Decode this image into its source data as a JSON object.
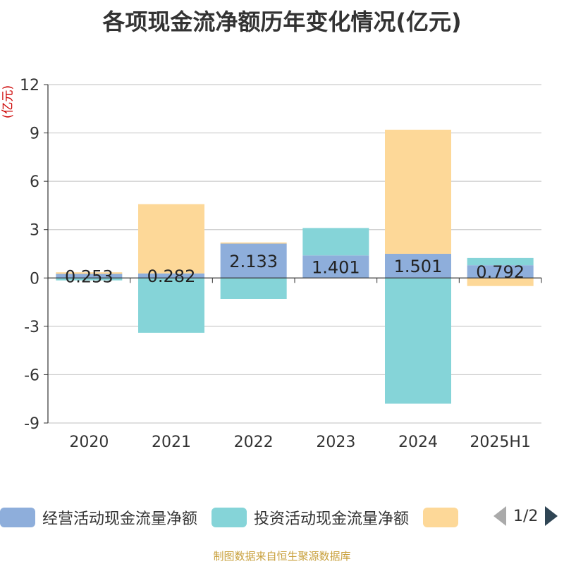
{
  "title": "各项现金流净额历年变化情况(亿元)",
  "y_unit": "(亿元)",
  "source": "制图数据来自恒生聚源数据库",
  "pager": {
    "text": "1/2"
  },
  "chart_data": {
    "type": "bar",
    "stacked": true,
    "categories": [
      "2020",
      "2021",
      "2022",
      "2023",
      "2024",
      "2025H1"
    ],
    "ylim": [
      -9,
      12
    ],
    "yticks": [
      12,
      9,
      6,
      3,
      0,
      -3,
      -6,
      -9
    ],
    "grid": true,
    "legend_position": "bottom",
    "series": [
      {
        "name": "经营活动现金流量净额",
        "color": "#8eaedb",
        "values": [
          0.253,
          0.282,
          2.133,
          1.401,
          1.501,
          0.792
        ],
        "labels": [
          "0.253",
          "0.282",
          "2.133",
          "1.401",
          "1.501",
          "0.792"
        ]
      },
      {
        "name": "投资活动现金流量净额",
        "color": "#85d4d8",
        "values": [
          -0.15,
          -3.4,
          -1.3,
          1.7,
          -7.8,
          0.45
        ]
      },
      {
        "name": "",
        "color": "#fdd898",
        "values": [
          0.1,
          4.3,
          0.07,
          0.0,
          7.7,
          -0.5
        ]
      }
    ]
  }
}
